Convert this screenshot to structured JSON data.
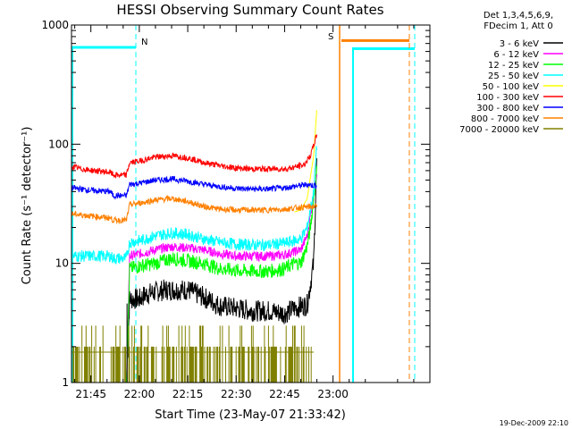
{
  "chart_data": {
    "type": "line",
    "title": "HESSI Observing Summary Count Rates",
    "xlabel": "Start Time (23-May-07 21:33:42)",
    "ylabel": "Count Rate (s⁻¹ detector⁻¹)",
    "x_range_minutes_after_2130": [
      9,
      120
    ],
    "ylim": [
      1,
      1000
    ],
    "y_scale": "log",
    "x_ticks": [
      "21:45",
      "22:00",
      "22:15",
      "22:30",
      "22:45",
      "23:00"
    ],
    "y_ticks": [
      "1",
      "10",
      "100",
      "1000"
    ],
    "legend_header": [
      "Det 1,3,4,5,6,9,",
      "FDecim 1, Att 0"
    ],
    "footer_date": "19-Dec-2009 22:10",
    "flags": [
      {
        "label": "N",
        "color": "#ff00ff"
      },
      {
        "label": "S",
        "color": "#ff8000"
      }
    ],
    "series": [
      {
        "name": "3 - 6 keV",
        "color": "#000000",
        "points": [
          [
            9,
            1
          ],
          [
            26,
            1
          ],
          [
            27,
            5
          ],
          [
            30,
            5
          ],
          [
            32,
            5.5
          ],
          [
            38,
            6
          ],
          [
            45,
            6
          ],
          [
            50,
            5.2
          ],
          [
            55,
            4.4
          ],
          [
            60,
            4.2
          ],
          [
            65,
            4
          ],
          [
            70,
            4
          ],
          [
            75,
            3.8
          ],
          [
            78,
            4.2
          ],
          [
            82,
            4.5
          ],
          [
            84,
            10
          ],
          [
            85,
            80
          ]
        ]
      },
      {
        "name": "6 - 12 keV",
        "color": "#ff00ff",
        "points": [
          [
            9,
            1
          ],
          [
            26,
            1
          ],
          [
            27,
            11.5
          ],
          [
            30,
            12
          ],
          [
            35,
            13
          ],
          [
            40,
            13.8
          ],
          [
            45,
            13.5
          ],
          [
            50,
            13
          ],
          [
            55,
            12
          ],
          [
            60,
            11.5
          ],
          [
            65,
            11.5
          ],
          [
            70,
            11.5
          ],
          [
            75,
            11.8
          ],
          [
            78,
            12.5
          ],
          [
            80,
            13
          ],
          [
            82,
            17
          ],
          [
            83,
            25
          ],
          [
            85,
            60
          ]
        ]
      },
      {
        "name": "12 - 25 keV",
        "color": "#00ff00",
        "points": [
          [
            9,
            1
          ],
          [
            26,
            1
          ],
          [
            27,
            9
          ],
          [
            30,
            9.5
          ],
          [
            35,
            10
          ],
          [
            40,
            11
          ],
          [
            45,
            10.5
          ],
          [
            50,
            10
          ],
          [
            55,
            9
          ],
          [
            60,
            8.7
          ],
          [
            65,
            8.6
          ],
          [
            70,
            8.6
          ],
          [
            75,
            9
          ],
          [
            78,
            10
          ],
          [
            80,
            10
          ],
          [
            82,
            14
          ],
          [
            83,
            20
          ],
          [
            85,
            60
          ]
        ]
      },
      {
        "name": "25 - 50 keV",
        "color": "#00ffff",
        "points": [
          [
            9,
            11.5
          ],
          [
            21,
            11.5
          ],
          [
            22,
            11
          ],
          [
            26,
            11
          ],
          [
            27,
            15
          ],
          [
            30,
            15.5
          ],
          [
            35,
            17
          ],
          [
            40,
            18
          ],
          [
            45,
            17.5
          ],
          [
            50,
            16
          ],
          [
            55,
            15
          ],
          [
            60,
            14.5
          ],
          [
            65,
            14.3
          ],
          [
            70,
            14.3
          ],
          [
            75,
            14.8
          ],
          [
            78,
            15.5
          ],
          [
            80,
            16
          ],
          [
            82,
            20
          ],
          [
            84,
            40
          ],
          [
            85,
            100
          ]
        ]
      },
      {
        "name": "50 - 100 keV",
        "color": "#ffff00",
        "points": [
          [
            78,
            27
          ],
          [
            80,
            28
          ],
          [
            82,
            35
          ],
          [
            84,
            80
          ],
          [
            85,
            200
          ]
        ]
      },
      {
        "name": "100 - 300 keV",
        "color": "#ff0000",
        "points": [
          [
            9,
            65
          ],
          [
            12,
            62
          ],
          [
            16,
            60
          ],
          [
            21,
            58
          ],
          [
            22,
            55
          ],
          [
            26,
            55
          ],
          [
            27,
            70
          ],
          [
            30,
            72
          ],
          [
            35,
            78
          ],
          [
            40,
            80
          ],
          [
            45,
            77
          ],
          [
            50,
            70
          ],
          [
            55,
            66
          ],
          [
            60,
            63
          ],
          [
            65,
            62
          ],
          [
            70,
            62
          ],
          [
            75,
            62
          ],
          [
            78,
            64
          ],
          [
            81,
            67
          ],
          [
            83,
            80
          ],
          [
            85,
            120
          ]
        ]
      },
      {
        "name": "300 - 800 keV",
        "color": "#0000ff",
        "points": [
          [
            9,
            43
          ],
          [
            15,
            41
          ],
          [
            21,
            40
          ],
          [
            22,
            37
          ],
          [
            26,
            37
          ],
          [
            27,
            46
          ],
          [
            30,
            47
          ],
          [
            35,
            50
          ],
          [
            40,
            51
          ],
          [
            45,
            49
          ],
          [
            50,
            46
          ],
          [
            55,
            44
          ],
          [
            60,
            42.5
          ],
          [
            65,
            42
          ],
          [
            70,
            42
          ],
          [
            75,
            43
          ],
          [
            80,
            45
          ],
          [
            82,
            46
          ],
          [
            84,
            45
          ],
          [
            85,
            45
          ]
        ]
      },
      {
        "name": "800 - 7000 keV",
        "color": "#ff8000",
        "points": [
          [
            9,
            26
          ],
          [
            15,
            25
          ],
          [
            21,
            24
          ],
          [
            22,
            23
          ],
          [
            26,
            23
          ],
          [
            27,
            31
          ],
          [
            30,
            32
          ],
          [
            35,
            34
          ],
          [
            40,
            35
          ],
          [
            45,
            33
          ],
          [
            50,
            30
          ],
          [
            55,
            28.5
          ],
          [
            60,
            28
          ],
          [
            65,
            28
          ],
          [
            70,
            28
          ],
          [
            75,
            28.5
          ],
          [
            80,
            29.5
          ],
          [
            84,
            30
          ],
          [
            85,
            30
          ]
        ]
      },
      {
        "name": "7000 - 20000 keV",
        "color": "#808000",
        "points": [
          [
            9,
            1.8
          ],
          [
            15,
            1.8
          ],
          [
            20,
            1.8
          ],
          [
            25,
            1.8
          ],
          [
            30,
            1.8
          ],
          [
            40,
            1.8
          ],
          [
            50,
            1.8
          ],
          [
            60,
            1.8
          ],
          [
            70,
            1.8
          ],
          [
            80,
            1.8
          ],
          [
            84,
            1.8
          ]
        ]
      }
    ]
  }
}
